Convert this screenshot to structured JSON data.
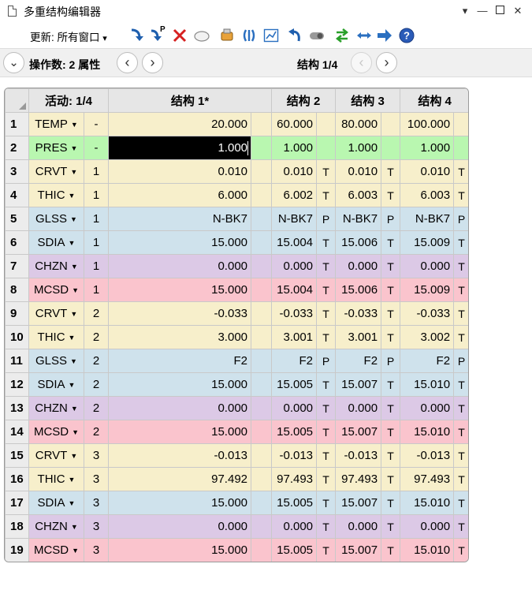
{
  "window": {
    "title": "多重结构编辑器"
  },
  "toolbar": {
    "update_label": "更新: 所有窗口",
    "update_caret": "▾",
    "p_label": "P"
  },
  "nav": {
    "operand_label": "操作数: 2 属性",
    "config_label": "结构 1/4",
    "expand_glyph": "⌄",
    "prev_glyph": "‹",
    "next_glyph": "›"
  },
  "grid": {
    "header": {
      "active": "活动: 1/4",
      "configs": [
        "结构 1*",
        "结构 2",
        "结构 3",
        "结构 4"
      ]
    },
    "rows": [
      {
        "num": "1",
        "op": "TEMP",
        "surf": "-",
        "c": [
          "20.000",
          "60.000",
          "80.000",
          "100.000"
        ],
        "s": [
          "",
          "",
          "",
          ""
        ],
        "color": "yellow"
      },
      {
        "num": "2",
        "op": "PRES",
        "surf": "-",
        "c": [
          "1.000",
          "1.000",
          "1.000",
          "1.000"
        ],
        "s": [
          "",
          "",
          "",
          ""
        ],
        "color": "green"
      },
      {
        "num": "3",
        "op": "CRVT",
        "surf": "1",
        "c": [
          "0.010",
          "0.010",
          "0.010",
          "0.010"
        ],
        "s": [
          "",
          "T",
          "T",
          "T"
        ],
        "color": "yellow"
      },
      {
        "num": "4",
        "op": "THIC",
        "surf": "1",
        "c": [
          "6.000",
          "6.002",
          "6.003",
          "6.003"
        ],
        "s": [
          "",
          "T",
          "T",
          "T"
        ],
        "color": "yellow"
      },
      {
        "num": "5",
        "op": "GLSS",
        "surf": "1",
        "c": [
          "N-BK7",
          "N-BK7",
          "N-BK7",
          "N-BK7"
        ],
        "s": [
          "",
          "P",
          "P",
          "P"
        ],
        "color": "blue"
      },
      {
        "num": "6",
        "op": "SDIA",
        "surf": "1",
        "c": [
          "15.000",
          "15.004",
          "15.006",
          "15.009"
        ],
        "s": [
          "",
          "T",
          "T",
          "T"
        ],
        "color": "blue"
      },
      {
        "num": "7",
        "op": "CHZN",
        "surf": "1",
        "c": [
          "0.000",
          "0.000",
          "0.000",
          "0.000"
        ],
        "s": [
          "",
          "T",
          "T",
          "T"
        ],
        "color": "purple"
      },
      {
        "num": "8",
        "op": "MCSD",
        "surf": "1",
        "c": [
          "15.000",
          "15.004",
          "15.006",
          "15.009"
        ],
        "s": [
          "",
          "T",
          "T",
          "T"
        ],
        "color": "pink"
      },
      {
        "num": "9",
        "op": "CRVT",
        "surf": "2",
        "c": [
          "-0.033",
          "-0.033",
          "-0.033",
          "-0.033"
        ],
        "s": [
          "",
          "T",
          "T",
          "T"
        ],
        "color": "yellow"
      },
      {
        "num": "10",
        "op": "THIC",
        "surf": "2",
        "c": [
          "3.000",
          "3.001",
          "3.001",
          "3.002"
        ],
        "s": [
          "",
          "T",
          "T",
          "T"
        ],
        "color": "yellow"
      },
      {
        "num": "11",
        "op": "GLSS",
        "surf": "2",
        "c": [
          "F2",
          "F2",
          "F2",
          "F2"
        ],
        "s": [
          "",
          "P",
          "P",
          "P"
        ],
        "color": "blue"
      },
      {
        "num": "12",
        "op": "SDIA",
        "surf": "2",
        "c": [
          "15.000",
          "15.005",
          "15.007",
          "15.010"
        ],
        "s": [
          "",
          "T",
          "T",
          "T"
        ],
        "color": "blue"
      },
      {
        "num": "13",
        "op": "CHZN",
        "surf": "2",
        "c": [
          "0.000",
          "0.000",
          "0.000",
          "0.000"
        ],
        "s": [
          "",
          "T",
          "T",
          "T"
        ],
        "color": "purple"
      },
      {
        "num": "14",
        "op": "MCSD",
        "surf": "2",
        "c": [
          "15.000",
          "15.005",
          "15.007",
          "15.010"
        ],
        "s": [
          "",
          "T",
          "T",
          "T"
        ],
        "color": "pink"
      },
      {
        "num": "15",
        "op": "CRVT",
        "surf": "3",
        "c": [
          "-0.013",
          "-0.013",
          "-0.013",
          "-0.013"
        ],
        "s": [
          "",
          "T",
          "T",
          "T"
        ],
        "color": "yellow"
      },
      {
        "num": "16",
        "op": "THIC",
        "surf": "3",
        "c": [
          "97.492",
          "97.493",
          "97.493",
          "97.493"
        ],
        "s": [
          "",
          "T",
          "T",
          "T"
        ],
        "color": "yellow"
      },
      {
        "num": "17",
        "op": "SDIA",
        "surf": "3",
        "c": [
          "15.000",
          "15.005",
          "15.007",
          "15.010"
        ],
        "s": [
          "",
          "T",
          "T",
          "T"
        ],
        "color": "blue"
      },
      {
        "num": "18",
        "op": "CHZN",
        "surf": "3",
        "c": [
          "0.000",
          "0.000",
          "0.000",
          "0.000"
        ],
        "s": [
          "",
          "T",
          "T",
          "T"
        ],
        "color": "purple"
      },
      {
        "num": "19",
        "op": "MCSD",
        "surf": "3",
        "c": [
          "15.000",
          "15.005",
          "15.007",
          "15.010"
        ],
        "s": [
          "",
          "T",
          "T",
          "T"
        ],
        "color": "pink"
      }
    ]
  },
  "colors": {
    "yellow": "#f7efcb",
    "green": "#b9f7b0",
    "blue": "#cfe2ec",
    "purple": "#dcc9e6",
    "pink": "#fac4cd"
  },
  "icons": [
    "down-arrow-icon",
    "pickup-icon",
    "delete-icon",
    "oval-icon",
    "lens-icon",
    "pipes-icon",
    "chart-icon",
    "undo-icon",
    "toggle-icon",
    "swap-icon",
    "expand-icon",
    "right-arrow-icon",
    "help-icon"
  ]
}
